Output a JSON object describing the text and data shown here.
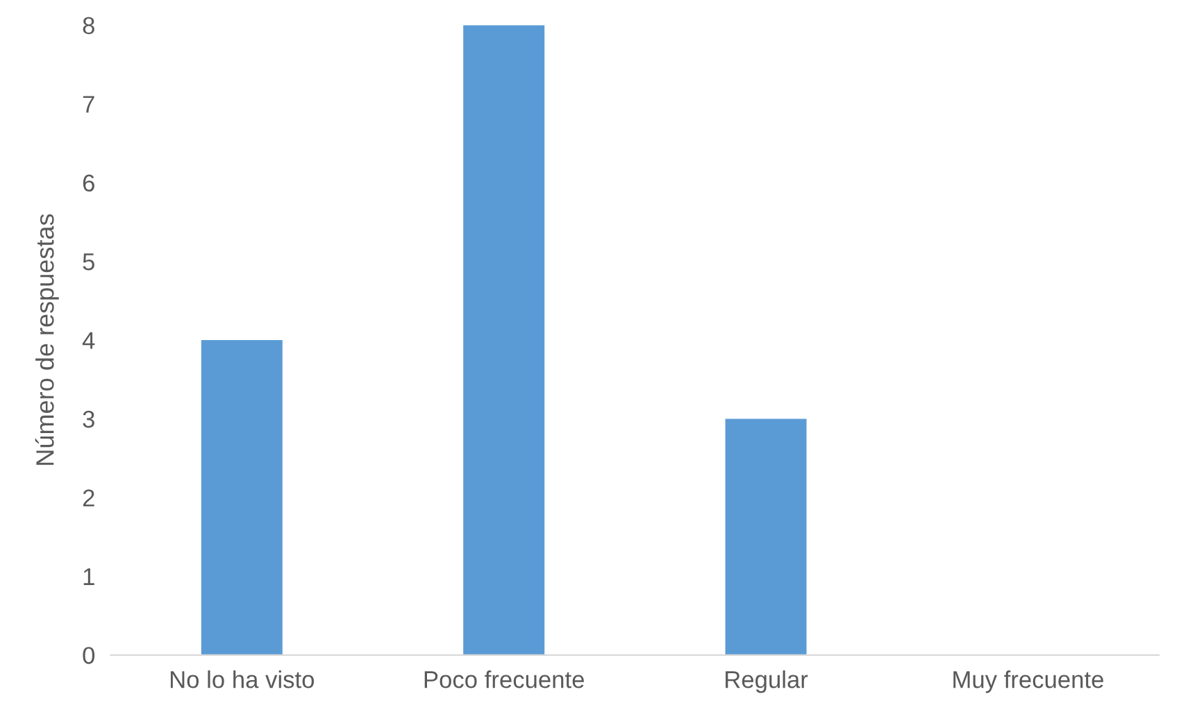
{
  "chart_data": {
    "type": "bar",
    "ylabel": "Número de respuestas",
    "categories": [
      "No lo ha visto",
      "Poco frecuente",
      "Regular",
      "Muy frecuente"
    ],
    "values": [
      4,
      8,
      3,
      0
    ],
    "color": "#5b9bd5",
    "ylim": [
      0,
      8
    ],
    "yticks": [
      0,
      1,
      2,
      3,
      4,
      5,
      6,
      7,
      8
    ],
    "grid": false,
    "legend": false
  }
}
